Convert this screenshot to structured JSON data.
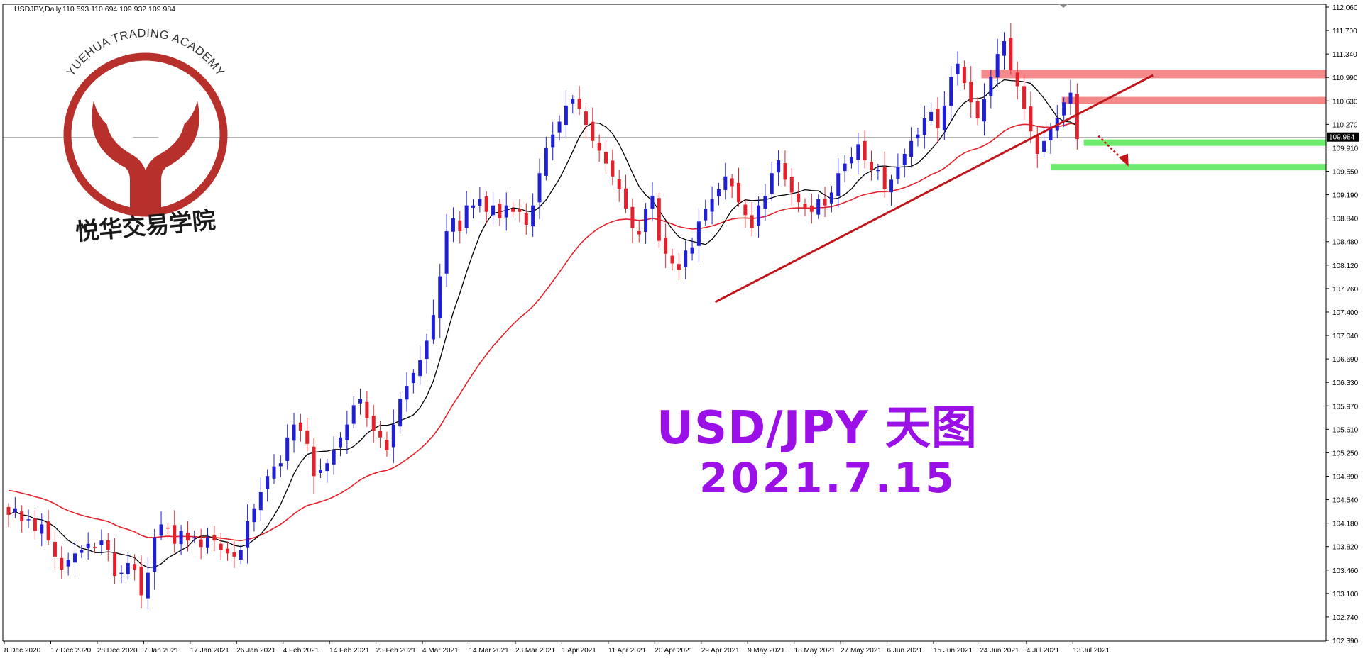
{
  "header": {
    "symbol": "USDJPY,Daily",
    "ohlc": "110.593 110.694 109.932 109.984"
  },
  "logo": {
    "top_text": "YUEHUA TRADING ACADEMY",
    "bottom_text": "悦华交易学院"
  },
  "overlay": {
    "title": "USD/JPY 天图",
    "date": "2021.7.15"
  },
  "colors": {
    "bull": "#1f1fd6",
    "bear": "#e4202a",
    "ma_fast": "#000000",
    "ma_slow": "#e4202a",
    "resistance": "#f47b7b",
    "support": "#66ea66",
    "trendline": "#c0161b",
    "price_tag_bg": "#000000",
    "purple_text": "#9a10e6",
    "logo_red": "#b8302c"
  },
  "chart_data": {
    "type": "candlestick",
    "ylim": [
      102.2,
      112.05
    ],
    "y_ticks": [
      "112.060",
      "111.700",
      "111.340",
      "110.990",
      "110.630",
      "110.270",
      "109.910",
      "109.550",
      "109.190",
      "108.840",
      "108.480",
      "108.120",
      "107.760",
      "107.400",
      "107.040",
      "106.690",
      "106.330",
      "105.970",
      "105.610",
      "105.250",
      "104.890",
      "104.540",
      "104.180",
      "103.820",
      "103.460",
      "103.100",
      "102.740",
      "102.390"
    ],
    "x_labels": [
      {
        "i": 0,
        "label": "8 Dec 2020"
      },
      {
        "i": 7,
        "label": "17 Dec 2020"
      },
      {
        "i": 14,
        "label": "28 Dec 2020"
      },
      {
        "i": 21,
        "label": "7 Jan 2021"
      },
      {
        "i": 28,
        "label": "17 Jan 2021"
      },
      {
        "i": 35,
        "label": "26 Jan 2021"
      },
      {
        "i": 42,
        "label": "4 Feb 2021"
      },
      {
        "i": 49,
        "label": "14 Feb 2021"
      },
      {
        "i": 56,
        "label": "23 Feb 2021"
      },
      {
        "i": 63,
        "label": "4 Mar 2021"
      },
      {
        "i": 70,
        "label": "14 Mar 2021"
      },
      {
        "i": 77,
        "label": "23 Mar 2021"
      },
      {
        "i": 84,
        "label": "1 Apr 2021"
      },
      {
        "i": 91,
        "label": "11 Apr 2021"
      },
      {
        "i": 98,
        "label": "20 Apr 2021"
      },
      {
        "i": 105,
        "label": "29 Apr 2021"
      },
      {
        "i": 112,
        "label": "9 May 2021"
      },
      {
        "i": 119,
        "label": "18 May 2021"
      },
      {
        "i": 126,
        "label": "27 May 2021"
      },
      {
        "i": 133,
        "label": "6 Jun 2021"
      },
      {
        "i": 140,
        "label": "15 Jun 2021"
      },
      {
        "i": 147,
        "label": "24 Jun 2021"
      },
      {
        "i": 154,
        "label": "4 Jul 2021"
      },
      {
        "i": 161,
        "label": "13 Jul 2021"
      }
    ],
    "last_price": "109.984",
    "closes": [
      104.15,
      104.25,
      104.05,
      104.08,
      103.9,
      104.0,
      103.75,
      103.5,
      103.3,
      103.45,
      103.55,
      103.6,
      103.7,
      103.65,
      103.75,
      103.6,
      103.2,
      103.25,
      103.4,
      103.3,
      102.9,
      103.25,
      103.8,
      104.0,
      103.95,
      103.7,
      103.9,
      103.75,
      103.8,
      103.65,
      103.8,
      103.75,
      103.6,
      103.55,
      103.5,
      103.6,
      104.05,
      104.25,
      104.5,
      104.75,
      104.9,
      104.95,
      105.35,
      105.55,
      105.45,
      105.25,
      104.75,
      104.85,
      104.95,
      105.15,
      105.35,
      105.55,
      105.85,
      105.95,
      105.65,
      105.45,
      105.35,
      105.15,
      105.55,
      105.95,
      106.15,
      106.35,
      106.55,
      106.85,
      107.25,
      107.85,
      108.55,
      108.75,
      108.55,
      108.95,
      108.95,
      109.05,
      108.85,
      108.95,
      108.75,
      108.95,
      108.85,
      108.85,
      108.65,
      108.95,
      109.45,
      109.85,
      110.05,
      110.25,
      110.5,
      110.6,
      110.45,
      110.2,
      109.95,
      109.8,
      109.6,
      109.4,
      109.2,
      108.9,
      108.6,
      108.5,
      108.9,
      109.1,
      108.4,
      108.2,
      108.05,
      107.95,
      108.25,
      108.3,
      108.7,
      108.9,
      109.05,
      109.2,
      109.4,
      109.25,
      109.0,
      108.8,
      108.6,
      108.95,
      109.1,
      109.45,
      109.65,
      109.35,
      109.15,
      109.0,
      108.9,
      108.85,
      109.05,
      108.95,
      109.15,
      109.45,
      109.6,
      109.7,
      109.9,
      109.65,
      109.5,
      109.5,
      109.2,
      109.35,
      109.55,
      109.75,
      109.95,
      110.05,
      110.3,
      110.4,
      110.15,
      110.5,
      110.95,
      111.15,
      110.85,
      110.55,
      110.3,
      110.6,
      110.95,
      111.3,
      111.5,
      111.05,
      110.8,
      110.45,
      110.1,
      109.75,
      109.95,
      110.15,
      110.3,
      110.55,
      110.7,
      109.98
    ],
    "series": [
      {
        "name": "",
        "type": "ma"
      },
      {
        "name": "",
        "type": "ma"
      }
    ],
    "levels": {
      "resistance": [
        111.0,
        110.58
      ],
      "support": [
        109.93,
        109.55
      ]
    },
    "trendline": {
      "from_i": 107,
      "from_price": 107.45,
      "to_i": 172,
      "to_price": 110.97
    }
  }
}
